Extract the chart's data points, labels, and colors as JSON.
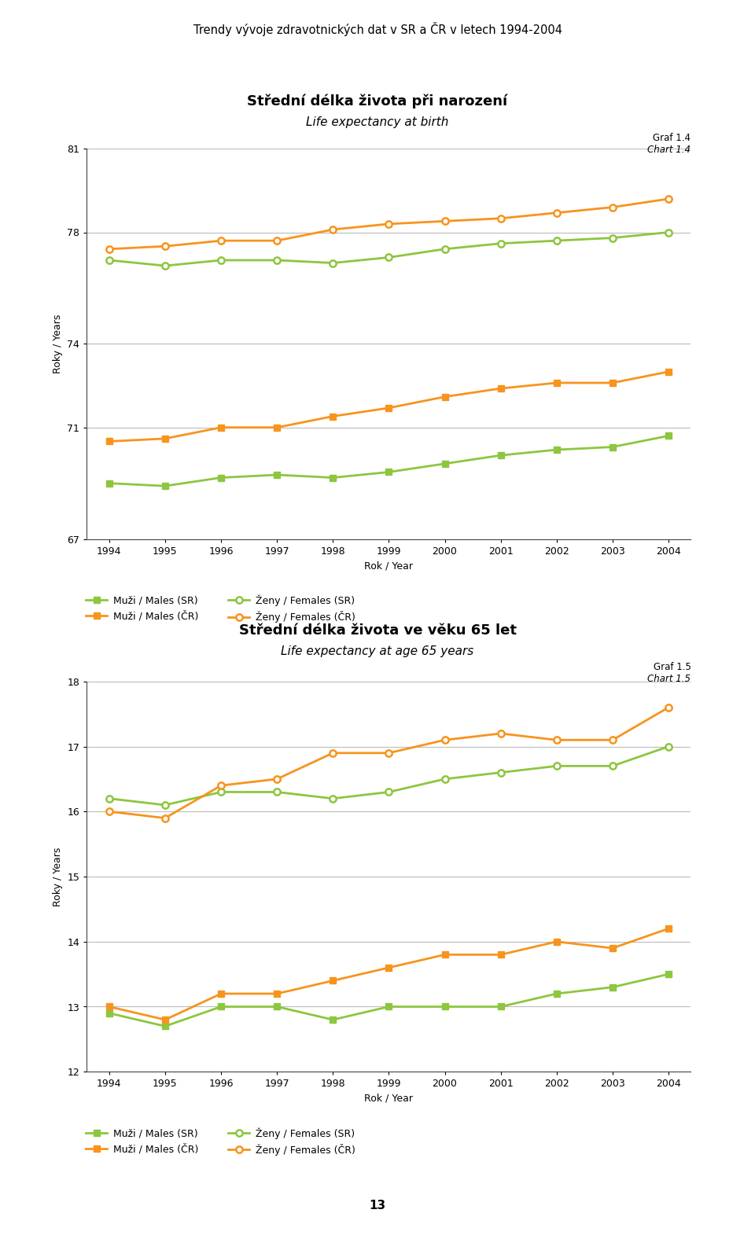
{
  "page_title": "Trendy vývoje zdravotnických dat v SR a ČR v letech 1994-2004",
  "years": [
    1994,
    1995,
    1996,
    1997,
    1998,
    1999,
    2000,
    2001,
    2002,
    2003,
    2004
  ],
  "chart1_title": "Střední délka života při narození",
  "chart1_subtitle": "Life expectancy at birth",
  "chart1_graf": "Graf 1.4",
  "chart1_chart": "Chart 1.4",
  "chart1_ylabel": "Roky / Years",
  "chart1_xlabel": "Rok / Year",
  "chart1_ylim": [
    67,
    81
  ],
  "chart1_yticks": [
    67,
    71,
    74,
    78,
    81
  ],
  "males_SR_birth": [
    69.0,
    68.9,
    69.2,
    69.3,
    69.2,
    69.4,
    69.7,
    70.0,
    70.2,
    70.3,
    70.7
  ],
  "females_SR_birth": [
    77.0,
    76.8,
    77.0,
    77.0,
    76.9,
    77.1,
    77.4,
    77.6,
    77.7,
    77.8,
    78.0
  ],
  "males_CR_birth": [
    70.5,
    70.6,
    71.0,
    71.0,
    71.4,
    71.7,
    72.1,
    72.4,
    72.6,
    72.6,
    73.0
  ],
  "females_CR_birth": [
    77.4,
    77.5,
    77.7,
    77.7,
    78.1,
    78.3,
    78.4,
    78.5,
    78.7,
    78.9,
    79.2
  ],
  "chart2_title": "Střední délka života ve věku 65 let",
  "chart2_subtitle": "Life expectancy at age 65 years",
  "chart2_graf": "Graf 1.5",
  "chart2_chart": "Chart 1.5",
  "chart2_ylabel": "Roky / Years",
  "chart2_xlabel": "Rok / Year",
  "chart2_ylim": [
    12,
    18
  ],
  "chart2_yticks": [
    12,
    13,
    14,
    15,
    16,
    17,
    18
  ],
  "males_SR_age65": [
    12.9,
    12.7,
    13.0,
    13.0,
    12.8,
    13.0,
    13.0,
    13.0,
    13.2,
    13.3,
    13.5
  ],
  "females_SR_age65": [
    16.2,
    16.1,
    16.3,
    16.3,
    16.2,
    16.3,
    16.5,
    16.6,
    16.7,
    16.7,
    17.0
  ],
  "males_CR_age65": [
    13.0,
    12.8,
    13.2,
    13.2,
    13.4,
    13.6,
    13.8,
    13.8,
    14.0,
    13.9,
    14.2
  ],
  "females_CR_age65": [
    16.0,
    15.9,
    16.4,
    16.5,
    16.9,
    16.9,
    17.1,
    17.2,
    17.1,
    17.1,
    17.6
  ],
  "color_SR": "#8dc63f",
  "color_CR": "#f7941d",
  "legend_males_SR": "Muži / Males (SR)",
  "legend_females_SR": "Ženy / Females (SR)",
  "legend_males_CR": "Muži / Males (ČR)",
  "legend_females_CR": "Ženy / Females (ČR)",
  "background_color": "#ffffff",
  "grid_color": "#bbbbbb",
  "page_number": "13"
}
